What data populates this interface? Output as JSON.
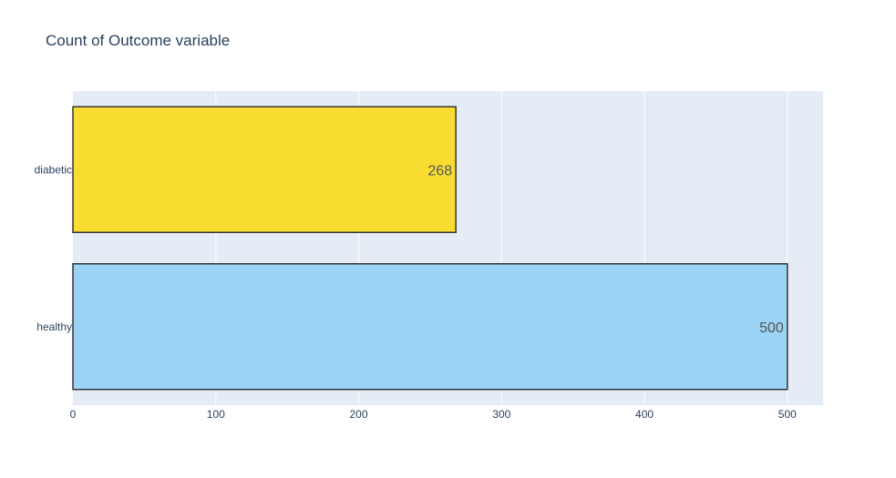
{
  "chart_data": {
    "type": "bar",
    "orientation": "horizontal",
    "title": "Count of Outcome variable",
    "xlabel": "",
    "ylabel": "",
    "categories": [
      "healthy",
      "diabetic"
    ],
    "values": [
      500,
      268
    ],
    "bar_colors": [
      "#9bd3f6",
      "#f8dc2f"
    ],
    "bar_outline_color": "#333333",
    "xlim": [
      0,
      525
    ],
    "xticks": [
      0,
      100,
      200,
      300,
      400,
      500
    ],
    "grid": true,
    "plot_background": "#e5ecf6",
    "grid_color": "#ffffff",
    "legend": "none"
  }
}
